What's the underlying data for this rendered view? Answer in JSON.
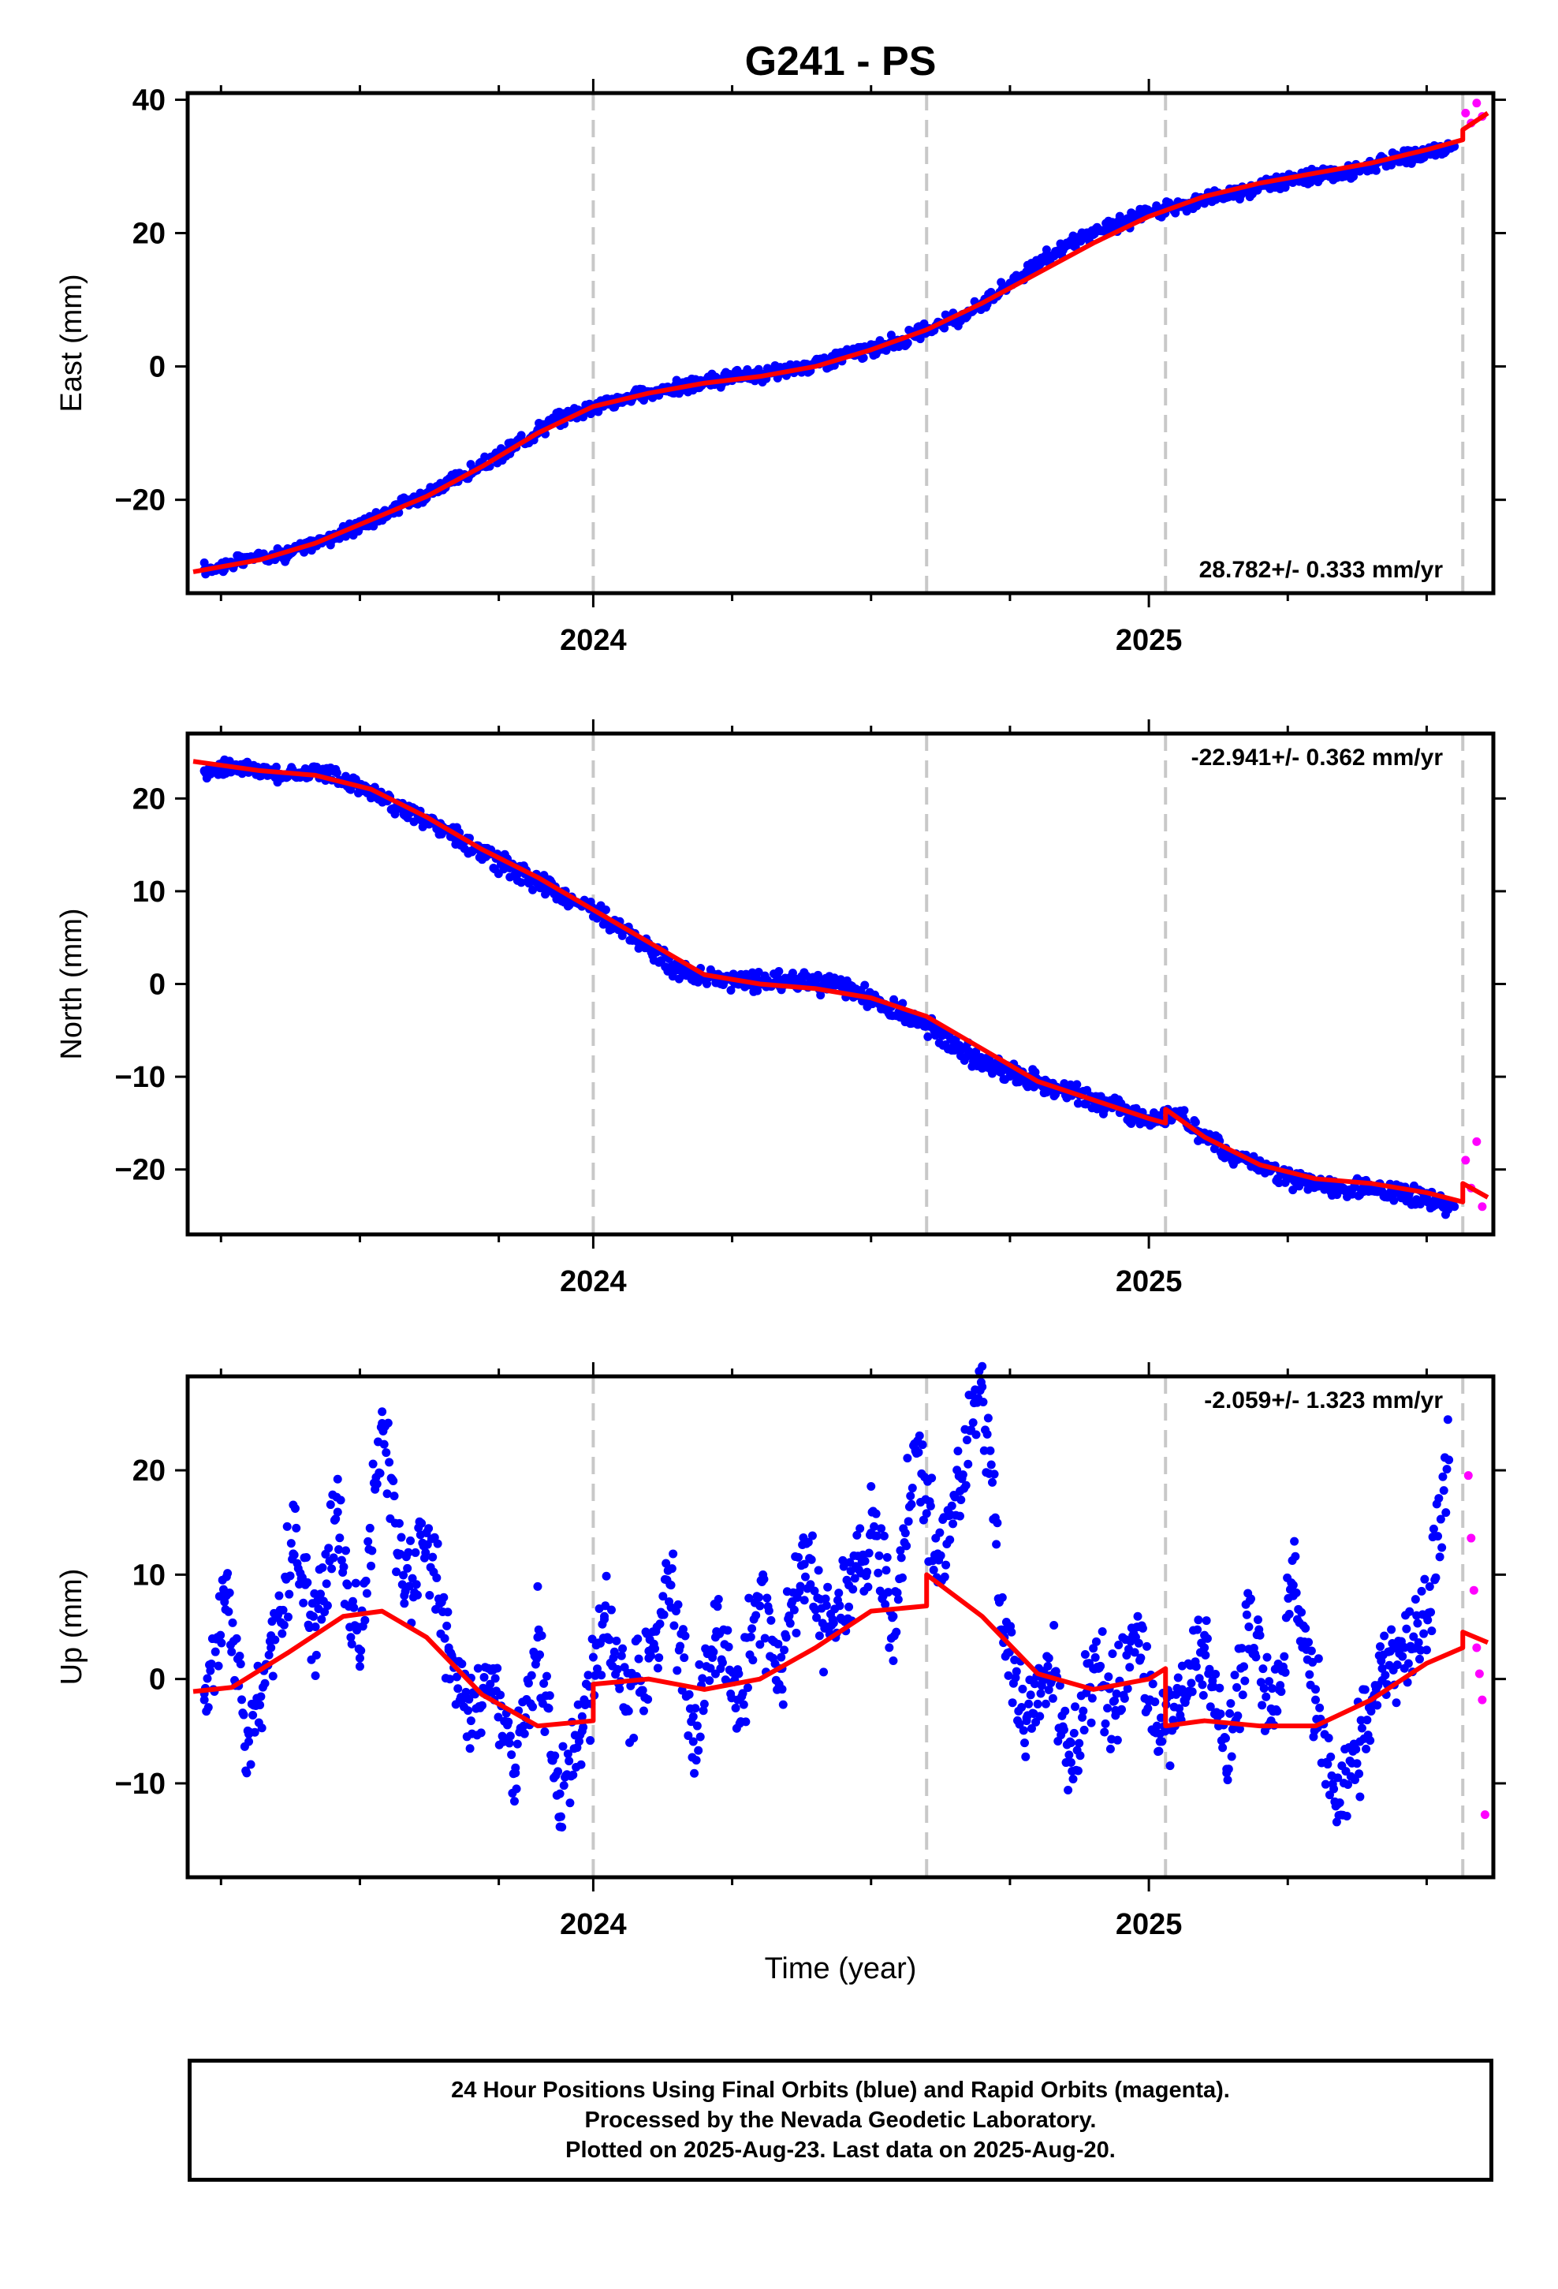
{
  "chart_data": [
    {
      "type": "scatter",
      "title": "G241 - PS",
      "ylabel": "East (mm)",
      "xlabel": "",
      "xlim": [
        2023.27,
        2025.62
      ],
      "ylim": [
        -34,
        41
      ],
      "xtick_labels": [
        "2024",
        "2025"
      ],
      "ytick_labels": [
        "-20",
        "0",
        "20",
        "40"
      ],
      "vlines": [
        2024.0,
        2024.6,
        2025.03,
        2025.565
      ],
      "rate_text": "28.782+/- 0.333 mm/yr",
      "rate_position": "bottom-right",
      "series": [
        {
          "name": "Final Orbits",
          "color": "#0000ff",
          "x": [
            2023.3,
            2023.35,
            2023.4,
            2023.45,
            2023.5,
            2023.55,
            2023.6,
            2023.65,
            2023.7,
            2023.75,
            2023.8,
            2023.85,
            2023.9,
            2023.95,
            2024.0,
            2024.05,
            2024.1,
            2024.15,
            2024.2,
            2024.25,
            2024.3,
            2024.35,
            2024.4,
            2024.45,
            2024.5,
            2024.55,
            2024.6,
            2024.65,
            2024.7,
            2024.75,
            2024.8,
            2024.85,
            2024.9,
            2024.95,
            2025.0,
            2025.05,
            2025.1,
            2025.15,
            2025.2,
            2025.25,
            2025.3,
            2025.35,
            2025.4,
            2025.45,
            2025.5,
            2025.55
          ],
          "y": [
            -30.5,
            -29.5,
            -28.5,
            -28.0,
            -26.5,
            -25.0,
            -23.0,
            -21.0,
            -19.0,
            -17.0,
            -15.0,
            -12.5,
            -9.5,
            -7.5,
            -6.0,
            -5.0,
            -4.0,
            -3.2,
            -2.5,
            -1.8,
            -1.2,
            -0.6,
            0.5,
            1.5,
            2.5,
            3.8,
            5.5,
            7.0,
            9.5,
            12.5,
            15.5,
            18.0,
            20.0,
            21.5,
            23.0,
            24.0,
            25.0,
            26.0,
            27.0,
            28.0,
            28.5,
            29.0,
            30.0,
            31.0,
            32.0,
            33.0
          ]
        },
        {
          "name": "Rapid Orbits",
          "color": "#ff00ff",
          "x": [
            2025.57,
            2025.58,
            2025.59,
            2025.6
          ],
          "y": [
            38.0,
            36.5,
            39.5,
            37.5
          ]
        }
      ],
      "model": {
        "color": "#ff0000",
        "x": [
          2023.28,
          2023.4,
          2023.5,
          2023.6,
          2023.7,
          2023.8,
          2023.9,
          2024.0,
          2024.1,
          2024.2,
          2024.3,
          2024.4,
          2024.5,
          2024.6,
          2024.7,
          2024.8,
          2024.9,
          2025.0,
          2025.1,
          2025.2,
          2025.3,
          2025.4,
          2025.5,
          2025.565,
          2025.565,
          2025.61
        ],
        "y": [
          -30.8,
          -29.0,
          -26.5,
          -23.0,
          -19.5,
          -15.0,
          -10.0,
          -6.0,
          -4.0,
          -2.5,
          -1.5,
          0.0,
          2.5,
          5.5,
          9.5,
          14.0,
          18.5,
          22.5,
          25.5,
          27.5,
          29.0,
          30.5,
          32.5,
          34.0,
          35.5,
          38.0
        ]
      }
    },
    {
      "type": "scatter",
      "title": "",
      "ylabel": "North (mm)",
      "xlabel": "",
      "xlim": [
        2023.27,
        2025.62
      ],
      "ylim": [
        -27,
        27
      ],
      "xtick_labels": [
        "2024",
        "2025"
      ],
      "ytick_labels": [
        "-20",
        "-10",
        "0",
        "10",
        "20"
      ],
      "vlines": [
        2024.0,
        2024.6,
        2025.03,
        2025.565
      ],
      "rate_text": "-22.941+/- 0.362 mm/yr",
      "rate_position": "top-right",
      "series": [
        {
          "name": "Final Orbits",
          "color": "#0000ff",
          "x": [
            2023.3,
            2023.35,
            2023.4,
            2023.45,
            2023.5,
            2023.55,
            2023.6,
            2023.65,
            2023.7,
            2023.75,
            2023.8,
            2023.85,
            2023.9,
            2023.95,
            2024.0,
            2024.05,
            2024.1,
            2024.15,
            2024.2,
            2024.25,
            2024.3,
            2024.35,
            2024.4,
            2024.45,
            2024.5,
            2024.55,
            2024.6,
            2024.65,
            2024.7,
            2024.75,
            2024.8,
            2024.85,
            2024.9,
            2024.95,
            2025.0,
            2025.05,
            2025.1,
            2025.15,
            2025.2,
            2025.25,
            2025.3,
            2025.35,
            2025.4,
            2025.45,
            2025.5,
            2025.55
          ],
          "y": [
            23.0,
            23.5,
            23.0,
            22.5,
            23.0,
            22.0,
            21.0,
            19.0,
            17.5,
            16.0,
            14.0,
            12.5,
            11.0,
            9.5,
            8.0,
            6.0,
            4.0,
            1.5,
            0.5,
            0.5,
            0.0,
            0.5,
            0.0,
            -0.5,
            -1.5,
            -3.0,
            -4.5,
            -6.5,
            -8.5,
            -9.5,
            -10.5,
            -11.5,
            -12.5,
            -13.5,
            -14.5,
            -14.0,
            -16.5,
            -18.5,
            -19.5,
            -21.0,
            -21.5,
            -22.0,
            -22.0,
            -22.5,
            -23.0,
            -24.0
          ]
        },
        {
          "name": "Rapid Orbits",
          "color": "#ff00ff",
          "x": [
            2025.57,
            2025.58,
            2025.59,
            2025.6
          ],
          "y": [
            -19.0,
            -22.0,
            -17.0,
            -24.0
          ]
        }
      ],
      "model": {
        "color": "#ff0000",
        "x": [
          2023.28,
          2023.4,
          2023.5,
          2023.6,
          2023.7,
          2023.8,
          2023.9,
          2024.0,
          2024.1,
          2024.2,
          2024.3,
          2024.4,
          2024.5,
          2024.6,
          2024.7,
          2024.8,
          2024.9,
          2025.0,
          2025.03,
          2025.03,
          2025.1,
          2025.2,
          2025.3,
          2025.4,
          2025.5,
          2025.565,
          2025.565,
          2025.61
        ],
        "y": [
          24.0,
          23.0,
          22.5,
          21.0,
          18.0,
          14.5,
          11.5,
          8.0,
          4.5,
          1.0,
          0.0,
          -0.5,
          -1.5,
          -3.5,
          -7.0,
          -10.5,
          -12.5,
          -14.5,
          -15.0,
          -13.5,
          -16.5,
          -19.5,
          -21.0,
          -21.5,
          -22.5,
          -23.5,
          -21.5,
          -23.0
        ]
      }
    },
    {
      "type": "scatter",
      "title": "",
      "ylabel": "Up (mm)",
      "xlabel": "Time (year)",
      "xlim": [
        2023.27,
        2025.62
      ],
      "ylim": [
        -19,
        29
      ],
      "xtick_labels": [
        "2024",
        "2025"
      ],
      "ytick_labels": [
        "-10",
        "0",
        "10",
        "20"
      ],
      "vlines": [
        2024.0,
        2024.6,
        2025.03,
        2025.565
      ],
      "rate_text": "-2.059+/- 1.323 mm/yr",
      "rate_position": "top-right",
      "series": [
        {
          "name": "Final Orbits",
          "color": "#0000ff",
          "x": [
            2023.3,
            2023.34,
            2023.38,
            2023.42,
            2023.46,
            2023.5,
            2023.54,
            2023.58,
            2023.62,
            2023.66,
            2023.7,
            2023.74,
            2023.78,
            2023.82,
            2023.86,
            2023.9,
            2023.94,
            2023.98,
            2024.02,
            2024.06,
            2024.1,
            2024.14,
            2024.18,
            2024.22,
            2024.26,
            2024.3,
            2024.34,
            2024.38,
            2024.42,
            2024.46,
            2024.5,
            2024.54,
            2024.58,
            2024.62,
            2024.66,
            2024.7,
            2024.74,
            2024.78,
            2024.82,
            2024.86,
            2024.9,
            2024.94,
            2024.98,
            2025.02,
            2025.06,
            2025.1,
            2025.14,
            2025.18,
            2025.22,
            2025.26,
            2025.3,
            2025.34,
            2025.38,
            2025.42,
            2025.46,
            2025.5,
            2025.54
          ],
          "y": [
            -2.0,
            8.0,
            -6.0,
            3.0,
            12.0,
            5.0,
            16.0,
            2.0,
            24.5,
            8.0,
            14.0,
            3.0,
            -4.0,
            1.0,
            -9.0,
            4.0,
            -11.0,
            -5.0,
            6.0,
            -3.0,
            2.0,
            9.0,
            -6.0,
            4.0,
            -2.0,
            7.0,
            1.0,
            11.0,
            5.0,
            9.0,
            14.0,
            6.0,
            22.0,
            12.0,
            18.0,
            28.0,
            4.0,
            -4.0,
            2.0,
            -8.0,
            1.0,
            -3.0,
            6.0,
            -6.0,
            -1.0,
            3.0,
            -9.0,
            5.0,
            -4.0,
            9.0,
            -2.0,
            -12.0,
            -6.0,
            1.0,
            3.0,
            6.0,
            21.0
          ]
        },
        {
          "name": "Rapid Orbits",
          "color": "#ff00ff",
          "x": [
            2025.575,
            2025.58,
            2025.585,
            2025.59,
            2025.595,
            2025.6,
            2025.605
          ],
          "y": [
            19.5,
            13.5,
            8.5,
            3.0,
            0.5,
            -2.0,
            -13.0
          ]
        }
      ],
      "model": {
        "color": "#ff0000",
        "x": [
          2023.28,
          2023.35,
          2023.45,
          2023.55,
          2023.62,
          2023.7,
          2023.8,
          2023.9,
          2024.0,
          2024.0,
          2024.1,
          2024.2,
          2024.3,
          2024.4,
          2024.5,
          2024.6,
          2024.6,
          2024.7,
          2024.8,
          2024.9,
          2025.0,
          2025.03,
          2025.03,
          2025.1,
          2025.2,
          2025.3,
          2025.4,
          2025.5,
          2025.565,
          2025.565,
          2025.61
        ],
        "y": [
          -1.2,
          -0.8,
          2.5,
          6.0,
          6.5,
          4.0,
          -1.5,
          -4.5,
          -4.0,
          -0.5,
          0.0,
          -1.0,
          0.0,
          3.0,
          6.5,
          7.0,
          10.0,
          6.0,
          0.5,
          -1.0,
          0.0,
          1.0,
          -4.5,
          -4.0,
          -4.5,
          -4.5,
          -2.0,
          1.5,
          3.0,
          4.5,
          3.5
        ]
      }
    }
  ],
  "footer": {
    "line1": "24 Hour Positions Using Final Orbits (blue) and Rapid Orbits (magenta).",
    "line2": "Processed by the Nevada Geodetic Laboratory.",
    "line3": "Plotted on 2025-Aug-23. Last data on 2025-Aug-20."
  }
}
